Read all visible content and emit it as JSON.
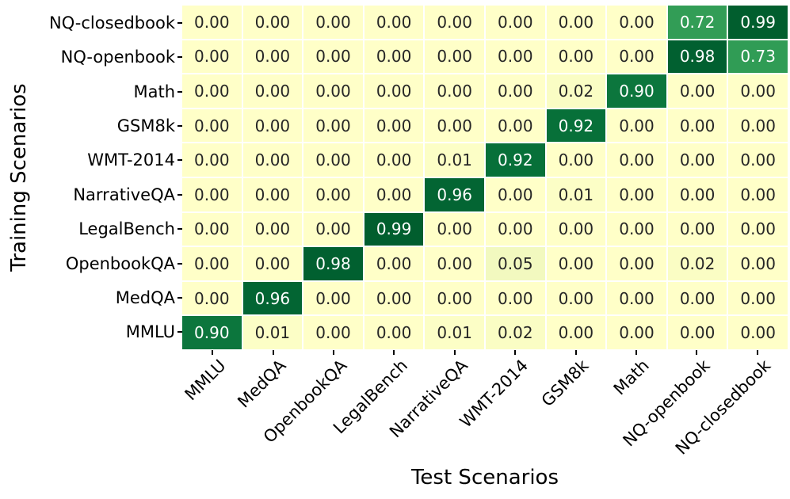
{
  "chart_data": {
    "type": "heatmap",
    "title": "",
    "xlabel": "Test Scenarios",
    "ylabel": "Training Scenarios",
    "x_categories": [
      "MMLU",
      "MedQA",
      "OpenbookQA",
      "LegalBench",
      "NarrativeQA",
      "WMT-2014",
      "GSM8k",
      "Math",
      "NQ-openbook",
      "NQ-closedbook"
    ],
    "y_categories": [
      "NQ-closedbook",
      "NQ-openbook",
      "Math",
      "GSM8k",
      "WMT-2014",
      "NarrativeQA",
      "LegalBench",
      "OpenbookQA",
      "MedQA",
      "MMLU"
    ],
    "rows": [
      {
        "label": "NQ-closedbook",
        "values": [
          0.0,
          0.0,
          0.0,
          0.0,
          0.0,
          0.0,
          0.0,
          0.0,
          0.72,
          0.99
        ]
      },
      {
        "label": "NQ-openbook",
        "values": [
          0.0,
          0.0,
          0.0,
          0.0,
          0.0,
          0.0,
          0.0,
          0.0,
          0.98,
          0.73
        ]
      },
      {
        "label": "Math",
        "values": [
          0.0,
          0.0,
          0.0,
          0.0,
          0.0,
          0.0,
          0.02,
          0.9,
          0.0,
          0.0
        ]
      },
      {
        "label": "GSM8k",
        "values": [
          0.0,
          0.0,
          0.0,
          0.0,
          0.0,
          0.0,
          0.92,
          0.0,
          0.0,
          0.0
        ]
      },
      {
        "label": "WMT-2014",
        "values": [
          0.0,
          0.0,
          0.0,
          0.0,
          0.01,
          0.92,
          0.0,
          0.0,
          0.0,
          0.0
        ]
      },
      {
        "label": "NarrativeQA",
        "values": [
          0.0,
          0.0,
          0.0,
          0.0,
          0.96,
          0.0,
          0.01,
          0.0,
          0.0,
          0.0
        ]
      },
      {
        "label": "LegalBench",
        "values": [
          0.0,
          0.0,
          0.0,
          0.99,
          0.0,
          0.0,
          0.0,
          0.0,
          0.0,
          0.0
        ]
      },
      {
        "label": "OpenbookQA",
        "values": [
          0.0,
          0.0,
          0.98,
          0.0,
          0.0,
          0.05,
          0.0,
          0.0,
          0.02,
          0.0
        ]
      },
      {
        "label": "MedQA",
        "values": [
          0.0,
          0.96,
          0.0,
          0.0,
          0.0,
          0.0,
          0.0,
          0.0,
          0.0,
          0.0
        ]
      },
      {
        "label": "MMLU",
        "values": [
          0.9,
          0.01,
          0.0,
          0.0,
          0.01,
          0.02,
          0.0,
          0.0,
          0.0,
          0.0
        ]
      }
    ],
    "value_format_decimals": 2,
    "vmin": 0,
    "vmax": 1,
    "grid_line_color": "#ffffff",
    "legend": "none",
    "colormap": {
      "name": "YlGn",
      "stops": [
        {
          "pos": 0.0,
          "color": "#ffffc8"
        },
        {
          "pos": 0.05,
          "color": "#f2f9bf"
        },
        {
          "pos": 0.15,
          "color": "#e2f4ab"
        },
        {
          "pos": 0.3,
          "color": "#addd8e"
        },
        {
          "pos": 0.45,
          "color": "#78c679"
        },
        {
          "pos": 0.625,
          "color": "#41ab5d"
        },
        {
          "pos": 0.8,
          "color": "#259250"
        },
        {
          "pos": 0.93,
          "color": "#056d37"
        },
        {
          "pos": 1.0,
          "color": "#005b2d"
        }
      ],
      "dark_cell_text_color": "#ffffff",
      "light_cell_text_color": "#262626",
      "white_text_threshold": 0.7
    }
  }
}
